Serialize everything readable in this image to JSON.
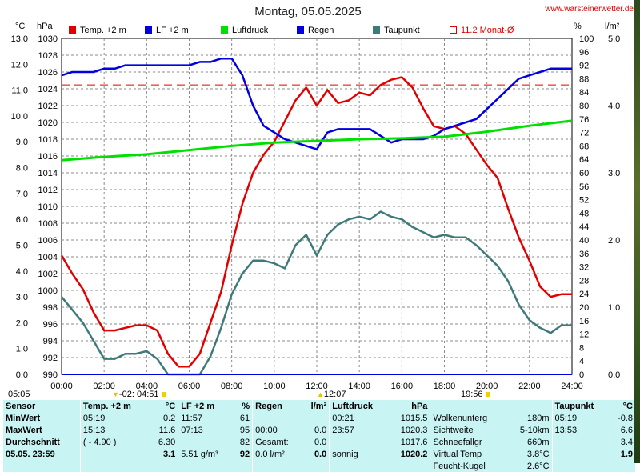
{
  "title": "Montag, 05.05.2025",
  "site": "www.warsteinerwetter.de",
  "axis_units": {
    "temp": "°C",
    "pressure": "hPa",
    "humidity": "%",
    "rain": "l/m²"
  },
  "legend": [
    {
      "label": "Temp. +2 m",
      "color": "#e00000"
    },
    {
      "label": "LF +2 m",
      "color": "#0000e0"
    },
    {
      "label": "Luftdruck",
      "color": "#00e000"
    },
    {
      "label": "Regen",
      "color": "#0000e0"
    },
    {
      "label": "Taupunkt",
      "color": "#3f7a7a"
    },
    {
      "label": "11.2 Monat-Ø",
      "color": "#e00000"
    }
  ],
  "markers": {
    "sunrise": "05:05",
    "moonset": "-02:",
    "moon_time": "04:51",
    "noon": "12:07",
    "sunset": "19:56"
  },
  "chart_data": {
    "type": "line",
    "x_ticks": [
      "00:00",
      "02:00",
      "04:00",
      "06:00",
      "08:00",
      "10:00",
      "12:00",
      "14:00",
      "16:00",
      "18:00",
      "20:00",
      "22:00",
      "24:00"
    ],
    "temp_ticks": [
      "0.0",
      "1.0",
      "2.0",
      "3.0",
      "4.0",
      "5.0",
      "6.0",
      "7.0",
      "8.0",
      "9.0",
      "10.0",
      "11.0",
      "12.0",
      "13.0"
    ],
    "pressure_ticks": [
      "990",
      "992",
      "994",
      "996",
      "998",
      "1000",
      "1002",
      "1004",
      "1006",
      "1008",
      "1010",
      "1012",
      "1014",
      "1016",
      "1018",
      "1020",
      "1022",
      "1024",
      "1026",
      "1028",
      "1030"
    ],
    "humidity_ticks": [
      "0",
      "4",
      "8",
      "12",
      "16",
      "20",
      "24",
      "28",
      "32",
      "36",
      "40",
      "44",
      "48",
      "52",
      "56",
      "60",
      "64",
      "68",
      "72",
      "76",
      "80",
      "84",
      "88",
      "92",
      "96",
      "100"
    ],
    "rain_ticks": [
      "0.0",
      "1.0",
      "2.0",
      "3.0",
      "4.0",
      "5.0"
    ],
    "temp_range": [
      0,
      13
    ],
    "pressure_range": [
      990,
      1030
    ],
    "humidity_range": [
      0,
      100
    ],
    "rain_range": [
      0,
      5
    ],
    "monthly_avg_temp": 11.2,
    "series": [
      {
        "name": "Temp. +2 m",
        "color": "#e00000",
        "x": [
          0,
          0.5,
          1,
          1.5,
          2,
          2.5,
          3,
          3.5,
          4,
          4.5,
          5,
          5.5,
          6,
          6.5,
          7,
          7.5,
          8,
          8.5,
          9,
          9.5,
          10,
          10.5,
          11,
          11.5,
          12,
          12.5,
          13,
          13.5,
          14,
          14.5,
          15,
          15.5,
          16,
          16.5,
          17,
          17.5,
          18,
          18.5,
          19,
          19.5,
          20,
          20.5,
          21,
          21.5,
          22,
          22.5,
          23,
          23.5,
          24
        ],
        "y": [
          4.6,
          3.9,
          3.3,
          2.4,
          1.7,
          1.7,
          1.8,
          1.9,
          1.9,
          1.7,
          0.8,
          0.3,
          0.3,
          0.8,
          2.0,
          3.2,
          5.0,
          6.6,
          7.8,
          8.5,
          9.0,
          9.8,
          10.6,
          11.1,
          10.4,
          11.0,
          10.5,
          10.6,
          10.9,
          10.8,
          11.2,
          11.4,
          11.5,
          11.1,
          10.3,
          9.6,
          9.5,
          9.6,
          9.3,
          8.7,
          8.1,
          7.6,
          6.4,
          5.3,
          4.4,
          3.4,
          3.0,
          3.1,
          3.1
        ]
      },
      {
        "name": "Taupunkt",
        "color": "#3f7a7a",
        "x": [
          0,
          0.5,
          1,
          1.5,
          2,
          2.5,
          3,
          3.5,
          4,
          4.5,
          5,
          5.5,
          6,
          6.5,
          7,
          7.5,
          8,
          8.5,
          9,
          9.5,
          10,
          10.5,
          11,
          11.5,
          12,
          12.5,
          13,
          13.5,
          14,
          14.5,
          15,
          15.5,
          16,
          16.5,
          17,
          17.5,
          18,
          18.5,
          19,
          19.5,
          20,
          20.5,
          21,
          21.5,
          22,
          22.5,
          23,
          23.5,
          24
        ],
        "y": [
          3.0,
          2.5,
          2.0,
          1.3,
          0.6,
          0.6,
          0.8,
          0.8,
          0.9,
          0.6,
          -0.2,
          -0.4,
          -0.3,
          0.0,
          0.7,
          1.8,
          3.1,
          3.9,
          4.4,
          4.4,
          4.3,
          4.1,
          5.0,
          5.4,
          4.6,
          5.4,
          5.8,
          6.0,
          6.1,
          6.0,
          6.3,
          6.1,
          6.0,
          5.7,
          5.5,
          5.3,
          5.4,
          5.3,
          5.3,
          5.0,
          4.6,
          4.2,
          3.6,
          2.7,
          2.1,
          1.8,
          1.6,
          1.9,
          1.9
        ]
      },
      {
        "name": "LF +2 m",
        "color": "#0000e0",
        "x": [
          0,
          0.5,
          1,
          1.5,
          2,
          2.5,
          3,
          3.5,
          4,
          4.5,
          5,
          5.5,
          6,
          6.5,
          7,
          7.5,
          8,
          8.5,
          9,
          9.5,
          10,
          10.5,
          11,
          11.5,
          12,
          12.5,
          13,
          13.5,
          14,
          14.5,
          15,
          15.5,
          16,
          16.5,
          17,
          17.5,
          18,
          18.5,
          19,
          19.5,
          20,
          20.5,
          21,
          21.5,
          22,
          22.5,
          23,
          23.5,
          24
        ],
        "y": [
          89,
          90,
          90,
          90,
          91,
          91,
          92,
          92,
          92,
          92,
          92,
          92,
          92,
          93,
          93,
          94,
          94,
          89,
          80,
          74,
          72,
          70,
          69,
          68,
          67,
          72,
          73,
          73,
          73,
          73,
          71,
          69,
          70,
          70,
          70,
          71,
          73,
          74,
          75,
          76,
          79,
          82,
          85,
          88,
          89,
          90,
          91,
          91,
          91
        ]
      },
      {
        "name": "Luftdruck",
        "color": "#00e000",
        "x": [
          0,
          2,
          4,
          6,
          8,
          10,
          12,
          14,
          16,
          18,
          20,
          22,
          24
        ],
        "y": [
          1015.5,
          1015.9,
          1016.2,
          1016.7,
          1017.2,
          1017.6,
          1017.8,
          1018.0,
          1018.1,
          1018.3,
          1018.9,
          1019.6,
          1020.2
        ]
      },
      {
        "name": "Regen",
        "color": "#0000e0",
        "x": [
          0,
          24
        ],
        "y": [
          0.0,
          0.0
        ]
      }
    ]
  },
  "stats": {
    "headers": [
      "Sensor",
      "Temp. +2 m",
      "°C",
      "LF +2 m",
      "%",
      "Regen",
      "l/m²",
      "Luftdruck",
      "hPa",
      "",
      "",
      "Taupunkt",
      "°C"
    ],
    "rows": [
      [
        "MinWert",
        "05:19",
        "0.2",
        "11:57",
        "61",
        "",
        "",
        "00:21",
        "1015.5",
        "Wolkenunterg",
        "180m",
        "05:19",
        "-0.8"
      ],
      [
        "MaxWert",
        "15:13",
        "11.6",
        "07:13",
        "95",
        "00:00",
        "0.0",
        "23:57",
        "1020.3",
        "Sichtweite",
        "5-10km",
        "13:53",
        "6.6"
      ],
      [
        "Durchschnitt",
        "( - 4.90 )",
        "6.30",
        "",
        "82",
        "Gesamt:",
        "0.0",
        "",
        "1017.6",
        "Schneefallgr",
        "660m",
        "",
        "3.4"
      ],
      [
        "05.05. 23:59",
        "",
        "3.1",
        "5.51 g/m³",
        "92",
        "0.0 l/m²",
        "0.0",
        "sonnig",
        "1020.2",
        "Virtual Temp",
        "3.8°C",
        "",
        "1.9"
      ]
    ],
    "extra": [
      "Feucht-Kugel",
      "2.6°C"
    ]
  }
}
